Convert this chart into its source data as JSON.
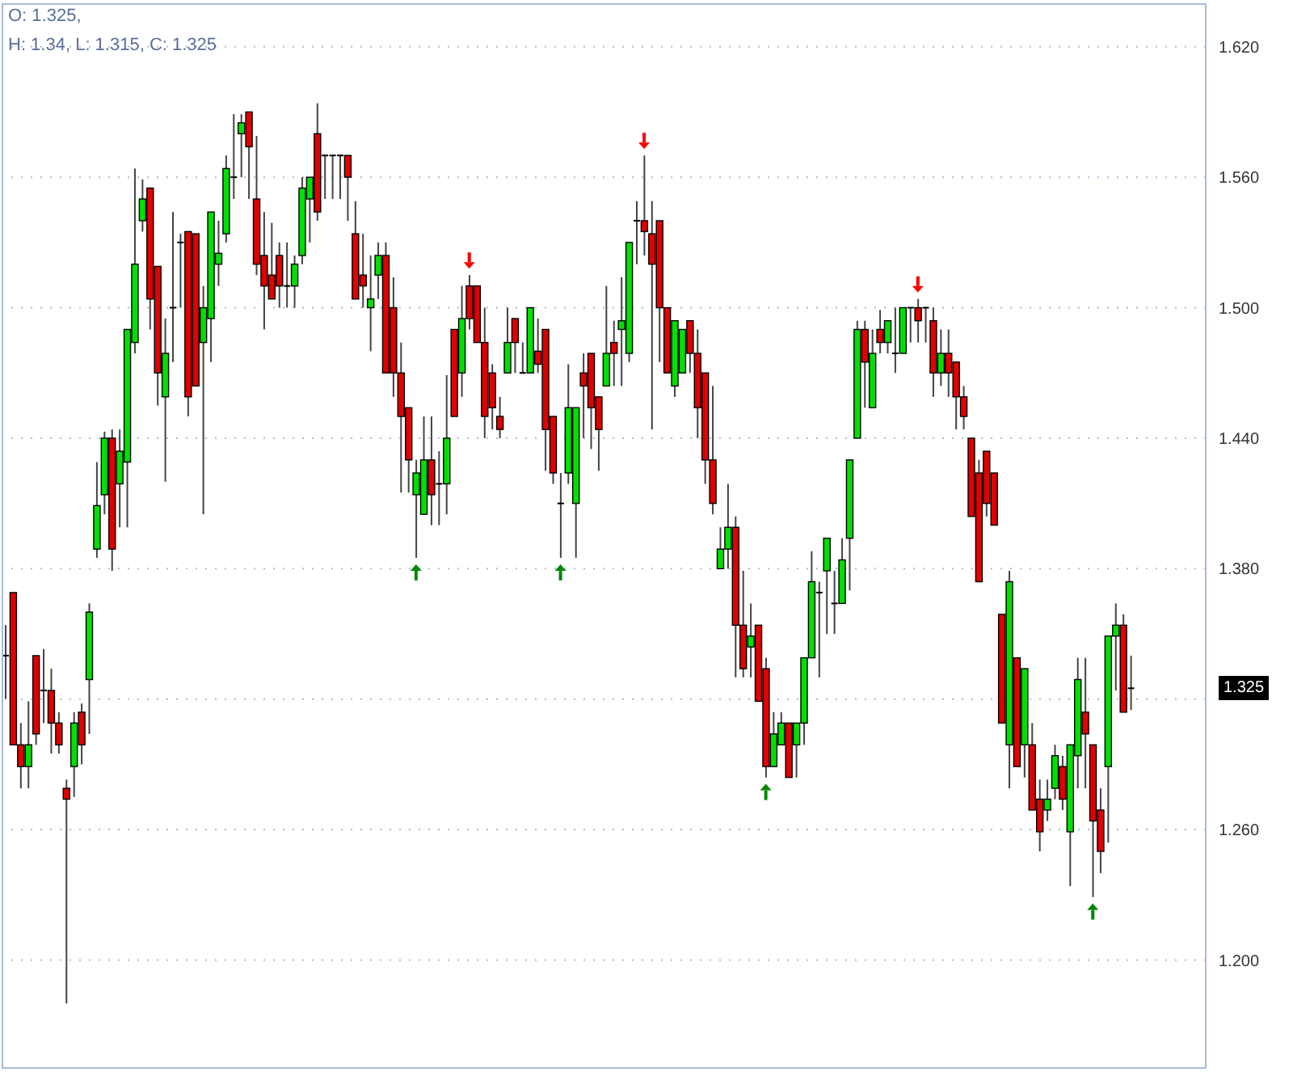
{
  "chart_data": {
    "type": "candlestick",
    "title": "O: 1.325,",
    "subtitle": "H: 1.34, L: 1.315, C: 1.325",
    "categories": [
      null,
      null,
      null,
      null,
      null,
      null,
      null,
      null,
      null,
      null,
      null,
      null,
      null,
      null,
      null,
      null,
      null,
      null,
      null,
      null,
      null,
      null,
      null,
      null,
      null,
      null,
      null,
      null,
      null,
      null,
      null,
      null,
      null,
      null,
      null,
      null,
      null,
      null,
      null,
      null,
      null,
      null,
      null,
      null,
      null,
      null,
      null,
      null,
      null,
      null,
      null,
      null,
      null,
      null,
      null,
      null,
      null,
      null,
      null,
      null,
      null,
      null,
      null,
      null,
      null,
      null,
      null,
      null,
      null,
      null,
      null,
      null,
      null,
      null,
      null,
      null,
      null,
      null,
      null,
      null,
      null,
      null,
      null,
      null,
      null,
      null,
      null,
      null,
      null,
      null,
      null,
      null,
      null,
      null,
      null,
      null,
      null,
      null,
      null,
      null,
      null,
      null,
      null,
      null,
      null,
      null,
      null,
      null,
      null,
      null,
      null,
      null,
      null,
      null,
      null,
      null,
      null,
      null,
      null,
      null,
      null,
      null,
      null,
      null,
      null,
      null,
      null,
      null,
      null,
      null,
      null,
      null,
      null,
      null,
      null,
      null,
      null,
      null,
      null,
      null,
      null,
      null,
      null,
      null,
      null,
      null,
      null,
      null,
      null
    ],
    "ohlc": [
      [
        1.34,
        1.354,
        1.32,
        1.34
      ],
      [
        1.369,
        1.369,
        1.299,
        1.299
      ],
      [
        1.299,
        1.309,
        1.279,
        1.289
      ],
      [
        1.289,
        1.319,
        1.279,
        1.299
      ],
      [
        1.34,
        1.34,
        1.299,
        1.304
      ],
      [
        1.324,
        1.343,
        1.309,
        1.324
      ],
      [
        1.324,
        1.334,
        1.295,
        1.309
      ],
      [
        1.309,
        1.314,
        1.295,
        1.299
      ],
      [
        1.279,
        1.283,
        1.18,
        1.274
      ],
      [
        1.289,
        1.314,
        1.275,
        1.309
      ],
      [
        1.314,
        1.318,
        1.29,
        1.299
      ],
      [
        1.329,
        1.364,
        1.304,
        1.36
      ],
      [
        1.389,
        1.429,
        1.385,
        1.409
      ],
      [
        1.414,
        1.443,
        1.405,
        1.44
      ],
      [
        1.44,
        1.444,
        1.379,
        1.389
      ],
      [
        1.419,
        1.444,
        1.399,
        1.434
      ],
      [
        1.429,
        1.49,
        1.399,
        1.49
      ],
      [
        1.484,
        1.564,
        1.479,
        1.52
      ],
      [
        1.54,
        1.559,
        1.535,
        1.55
      ],
      [
        1.555,
        1.555,
        1.49,
        1.504
      ],
      [
        1.519,
        1.519,
        1.455,
        1.47
      ],
      [
        1.459,
        1.495,
        1.42,
        1.479
      ],
      [
        1.5,
        1.544,
        1.475,
        1.5
      ],
      [
        1.53,
        1.534,
        1.5,
        1.53
      ],
      [
        1.535,
        1.535,
        1.45,
        1.459
      ],
      [
        1.534,
        1.534,
        1.464,
        1.464
      ],
      [
        1.484,
        1.51,
        1.405,
        1.5
      ],
      [
        1.495,
        1.544,
        1.475,
        1.544
      ],
      [
        1.52,
        1.54,
        1.51,
        1.525
      ],
      [
        1.534,
        1.57,
        1.53,
        1.564
      ],
      [
        1.56,
        1.589,
        1.55,
        1.56
      ],
      [
        1.58,
        1.589,
        1.56,
        1.585
      ],
      [
        1.59,
        1.59,
        1.55,
        1.574
      ],
      [
        1.55,
        1.579,
        1.515,
        1.52
      ],
      [
        1.524,
        1.544,
        1.49,
        1.51
      ],
      [
        1.515,
        1.539,
        1.504,
        1.504
      ],
      [
        1.524,
        1.53,
        1.5,
        1.51
      ],
      [
        1.51,
        1.53,
        1.5,
        1.51
      ],
      [
        1.51,
        1.524,
        1.5,
        1.52
      ],
      [
        1.524,
        1.56,
        1.52,
        1.555
      ],
      [
        1.55,
        1.56,
        1.53,
        1.56
      ],
      [
        1.58,
        1.594,
        1.54,
        1.544
      ],
      [
        1.57,
        1.57,
        1.55,
        1.57
      ],
      [
        1.57,
        1.57,
        1.55,
        1.57
      ],
      [
        1.57,
        1.57,
        1.55,
        1.57
      ],
      [
        1.57,
        1.57,
        1.54,
        1.56
      ],
      [
        1.534,
        1.549,
        1.504,
        1.504
      ],
      [
        1.515,
        1.534,
        1.5,
        1.51
      ],
      [
        1.5,
        1.524,
        1.48,
        1.504
      ],
      [
        1.515,
        1.53,
        1.504,
        1.524
      ],
      [
        1.524,
        1.53,
        1.47,
        1.47
      ],
      [
        1.5,
        1.514,
        1.459,
        1.47
      ],
      [
        1.47,
        1.484,
        1.415,
        1.45
      ],
      [
        1.454,
        1.454,
        1.415,
        1.43
      ],
      [
        1.414,
        1.43,
        1.385,
        1.424
      ],
      [
        1.405,
        1.45,
        1.405,
        1.43
      ],
      [
        1.43,
        1.45,
        1.4,
        1.414
      ],
      [
        1.419,
        1.434,
        1.4,
        1.419
      ],
      [
        1.419,
        1.469,
        1.405,
        1.44
      ],
      [
        1.49,
        1.49,
        1.45,
        1.45
      ],
      [
        1.47,
        1.51,
        1.459,
        1.495
      ],
      [
        1.51,
        1.515,
        1.49,
        1.495
      ],
      [
        1.51,
        1.51,
        1.484,
        1.484
      ],
      [
        1.484,
        1.5,
        1.44,
        1.45
      ],
      [
        1.47,
        1.474,
        1.444,
        1.454
      ],
      [
        1.45,
        1.459,
        1.44,
        1.444
      ],
      [
        1.47,
        1.5,
        1.47,
        1.484
      ],
      [
        1.495,
        1.495,
        1.47,
        1.484
      ],
      [
        1.47,
        1.484,
        1.47,
        1.47
      ],
      [
        1.47,
        1.5,
        1.47,
        1.5
      ],
      [
        1.48,
        1.495,
        1.47,
        1.474
      ],
      [
        1.49,
        1.49,
        1.425,
        1.444
      ],
      [
        1.45,
        1.45,
        1.419,
        1.424
      ],
      [
        1.41,
        1.424,
        1.385,
        1.41
      ],
      [
        1.424,
        1.474,
        1.419,
        1.454
      ],
      [
        1.41,
        1.454,
        1.385,
        1.454
      ],
      [
        1.47,
        1.479,
        1.44,
        1.464
      ],
      [
        1.479,
        1.479,
        1.435,
        1.454
      ],
      [
        1.459,
        1.459,
        1.425,
        1.444
      ],
      [
        1.464,
        1.51,
        1.464,
        1.479
      ],
      [
        1.484,
        1.494,
        1.464,
        1.479
      ],
      [
        1.49,
        1.514,
        1.464,
        1.494
      ],
      [
        1.479,
        1.53,
        1.475,
        1.53
      ],
      [
        1.54,
        1.549,
        1.52,
        1.54
      ],
      [
        1.54,
        1.57,
        1.524,
        1.535
      ],
      [
        1.534,
        1.549,
        1.444,
        1.52
      ],
      [
        1.54,
        1.54,
        1.475,
        1.5
      ],
      [
        1.5,
        1.5,
        1.47,
        1.47
      ],
      [
        1.464,
        1.494,
        1.459,
        1.494
      ],
      [
        1.47,
        1.49,
        1.47,
        1.49
      ],
      [
        1.494,
        1.494,
        1.47,
        1.479
      ],
      [
        1.479,
        1.49,
        1.44,
        1.454
      ],
      [
        1.47,
        1.47,
        1.419,
        1.43
      ],
      [
        1.43,
        1.464,
        1.405,
        1.41
      ],
      [
        1.38,
        1.399,
        1.38,
        1.389
      ],
      [
        1.389,
        1.419,
        1.38,
        1.399
      ],
      [
        1.399,
        1.404,
        1.33,
        1.354
      ],
      [
        1.354,
        1.379,
        1.33,
        1.334
      ],
      [
        1.344,
        1.364,
        1.33,
        1.349
      ],
      [
        1.354,
        1.354,
        1.319,
        1.319
      ],
      [
        1.334,
        1.339,
        1.284,
        1.289
      ],
      [
        1.289,
        1.314,
        1.289,
        1.304
      ],
      [
        1.299,
        1.314,
        1.299,
        1.309
      ],
      [
        1.309,
        1.309,
        1.284,
        1.284
      ],
      [
        1.299,
        1.309,
        1.284,
        1.309
      ],
      [
        1.309,
        1.339,
        1.299,
        1.339
      ],
      [
        1.339,
        1.388,
        1.339,
        1.374
      ],
      [
        1.369,
        1.374,
        1.33,
        1.369
      ],
      [
        1.379,
        1.394,
        1.35,
        1.394
      ],
      [
        1.364,
        1.379,
        1.35,
        1.364
      ],
      [
        1.364,
        1.394,
        1.364,
        1.384
      ],
      [
        1.394,
        1.43,
        1.37,
        1.43
      ],
      [
        1.44,
        1.494,
        1.44,
        1.49
      ],
      [
        1.49,
        1.494,
        1.454,
        1.475
      ],
      [
        1.454,
        1.49,
        1.454,
        1.479
      ],
      [
        1.49,
        1.499,
        1.479,
        1.484
      ],
      [
        1.484,
        1.494,
        1.479,
        1.494
      ],
      [
        1.479,
        1.5,
        1.47,
        1.479
      ],
      [
        1.479,
        1.5,
        1.479,
        1.5
      ],
      [
        1.5,
        1.5,
        1.484,
        1.5
      ],
      [
        1.5,
        1.504,
        1.484,
        1.494
      ],
      [
        1.5,
        1.5,
        1.484,
        1.5
      ],
      [
        1.494,
        1.5,
        1.459,
        1.47
      ],
      [
        1.47,
        1.49,
        1.464,
        1.479
      ],
      [
        1.479,
        1.49,
        1.459,
        1.47
      ],
      [
        1.475,
        1.475,
        1.444,
        1.459
      ],
      [
        1.459,
        1.464,
        1.444,
        1.45
      ],
      [
        1.44,
        1.44,
        1.404,
        1.404
      ],
      [
        1.424,
        1.43,
        1.374,
        1.374
      ],
      [
        1.434,
        1.434,
        1.404,
        1.41
      ],
      [
        1.424,
        1.424,
        1.4,
        1.4
      ],
      [
        1.359,
        1.359,
        1.309,
        1.309
      ],
      [
        1.299,
        1.379,
        1.279,
        1.374
      ],
      [
        1.339,
        1.339,
        1.289,
        1.289
      ],
      [
        1.299,
        1.334,
        1.284,
        1.334
      ],
      [
        1.299,
        1.309,
        1.269,
        1.269
      ],
      [
        1.274,
        1.283,
        1.25,
        1.259
      ],
      [
        1.269,
        1.283,
        1.264,
        1.274
      ],
      [
        1.279,
        1.299,
        1.274,
        1.294
      ],
      [
        1.289,
        1.294,
        1.269,
        1.274
      ],
      [
        1.259,
        1.299,
        1.234,
        1.299
      ],
      [
        1.294,
        1.339,
        1.279,
        1.329
      ],
      [
        1.314,
        1.339,
        1.279,
        1.304
      ],
      [
        1.299,
        1.299,
        1.229,
        1.264
      ],
      [
        1.269,
        1.279,
        1.24,
        1.25
      ],
      [
        1.289,
        1.349,
        1.254,
        1.349
      ],
      [
        1.349,
        1.364,
        1.324,
        1.354
      ],
      [
        1.354,
        1.359,
        1.314,
        1.314
      ],
      [
        1.325,
        1.34,
        1.315,
        1.325
      ]
    ],
    "colors": [
      "#000000",
      "#e00000",
      "#e00000",
      "#00e000",
      "#e00000",
      "#000000",
      "#e00000",
      "#e00000",
      "#e00000",
      "#00e000",
      "#e00000",
      "#00e000",
      "#00e000",
      "#00e000",
      "#e00000",
      "#00e000",
      "#00e000",
      "#00e000",
      "#00e000",
      "#e00000",
      "#e00000",
      "#00e000",
      "#000000",
      "#000000",
      "#e00000",
      "#e00000",
      "#00e000",
      "#00e000",
      "#00e000",
      "#00e000",
      "#000000",
      "#00e000",
      "#e00000",
      "#e00000",
      "#e00000",
      "#e00000",
      "#e00000",
      "#000000",
      "#00e000",
      "#00e000",
      "#00e000",
      "#e00000",
      "#000000",
      "#000000",
      "#000000",
      "#e00000",
      "#e00000",
      "#e00000",
      "#00e000",
      "#00e000",
      "#e00000",
      "#e00000",
      "#e00000",
      "#e00000",
      "#00e000",
      "#00e000",
      "#e00000",
      "#000000",
      "#00e000",
      "#e00000",
      "#00e000",
      "#e00000",
      "#e00000",
      "#e00000",
      "#e00000",
      "#e00000",
      "#00e000",
      "#e00000",
      "#000000",
      "#00e000",
      "#e00000",
      "#e00000",
      "#e00000",
      "#000000",
      "#00e000",
      "#00e000",
      "#e00000",
      "#e00000",
      "#e00000",
      "#00e000",
      "#e00000",
      "#00e000",
      "#00e000",
      "#000000",
      "#e00000",
      "#e00000",
      "#e00000",
      "#e00000",
      "#00e000",
      "#00e000",
      "#e00000",
      "#e00000",
      "#e00000",
      "#e00000",
      "#00e000",
      "#00e000",
      "#e00000",
      "#e00000",
      "#00e000",
      "#e00000",
      "#e00000",
      "#00e000",
      "#00e000",
      "#e00000",
      "#00e000",
      "#00e000",
      "#00e000",
      "#000000",
      "#00e000",
      "#000000",
      "#00e000",
      "#00e000",
      "#00e000",
      "#e00000",
      "#00e000",
      "#e00000",
      "#00e000",
      "#000000",
      "#00e000",
      "#000000",
      "#e00000",
      "#000000",
      "#e00000",
      "#00e000",
      "#e00000",
      "#e00000",
      "#e00000",
      "#e00000",
      "#e00000",
      "#e00000",
      "#e00000",
      "#e00000",
      "#00e000",
      "#e00000",
      "#00e000",
      "#e00000",
      "#e00000",
      "#00e000",
      "#00e000",
      "#e00000",
      "#00e000",
      "#00e000",
      "#e00000",
      "#e00000",
      "#e00000",
      "#00e000",
      "#00e000",
      "#e00000",
      "#000000"
    ],
    "ylim": [
      1.15,
      1.64
    ],
    "yticks": [
      {
        "value": 1.2,
        "label": "1.200"
      },
      {
        "value": 1.26,
        "label": "1.260"
      },
      {
        "value": 1.32,
        "label": null
      },
      {
        "value": 1.38,
        "label": "1.380"
      },
      {
        "value": 1.44,
        "label": "1.440"
      },
      {
        "value": 1.5,
        "label": "1.500"
      },
      {
        "value": 1.56,
        "label": "1.560"
      },
      {
        "value": 1.62,
        "label": "1.620"
      }
    ],
    "grid": "y",
    "annotations": [
      "1.325"
    ]
  }
}
